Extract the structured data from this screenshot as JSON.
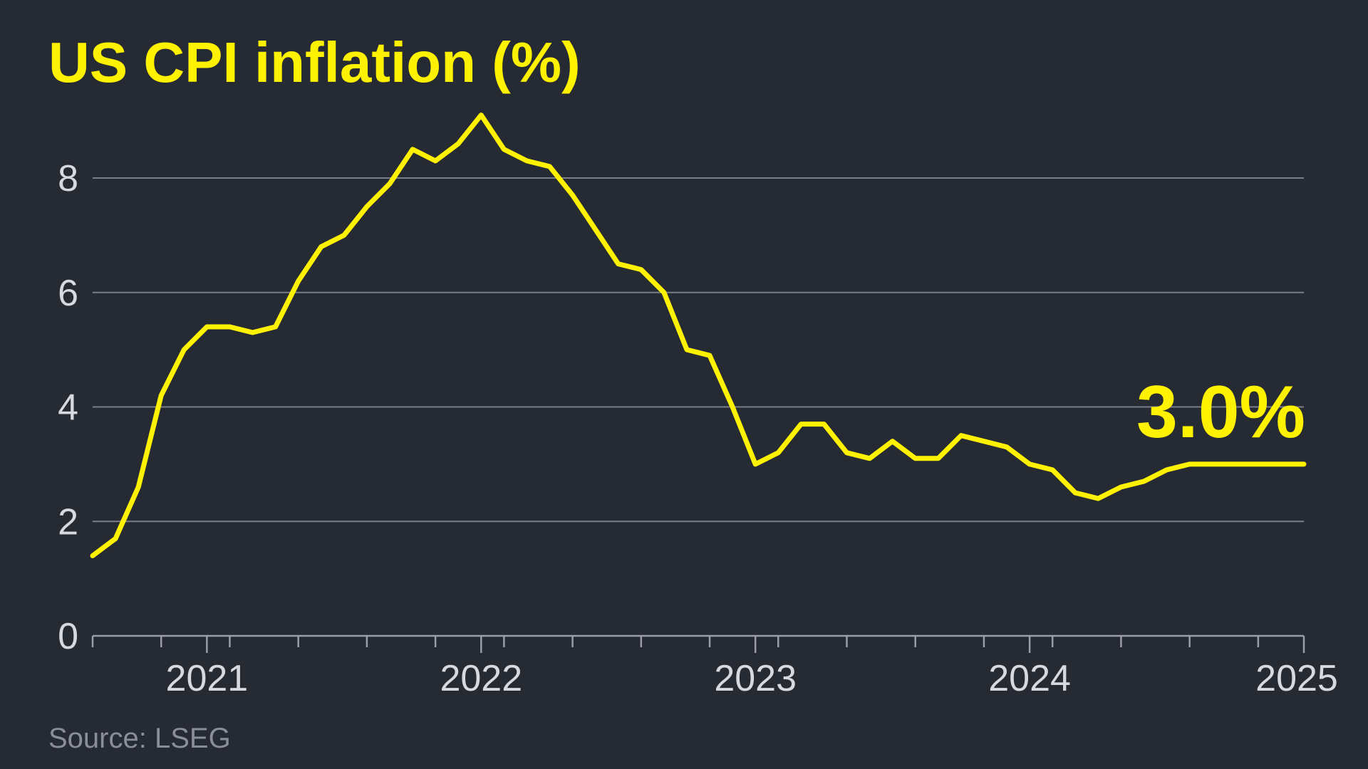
{
  "colors": {
    "background": "#262a33",
    "accent": "#fff200",
    "grid": "#7a7e88",
    "tick_text": "#d7d9de",
    "source_text": "#8a8e98"
  },
  "source": "Source: LSEG",
  "chart_data": {
    "type": "line",
    "title": "US CPI inflation (%)",
    "xlabel": "",
    "ylabel": "",
    "ylim": [
      0,
      9.5
    ],
    "yticks": [
      0,
      2,
      4,
      6,
      8
    ],
    "ytick_labels": [
      "0",
      "2",
      "4",
      "6",
      "8"
    ],
    "grid": true,
    "xlim": [
      "2020-08",
      "2025-01"
    ],
    "xticks": [
      "2021-01",
      "2022-01",
      "2023-01",
      "2024-01",
      "2025-01"
    ],
    "xtick_labels": [
      "2021",
      "2022",
      "2023",
      "2024",
      "2025"
    ],
    "end_label": "3.0%",
    "series": [
      {
        "x": [
          "2020-08",
          "2020-09",
          "2020-10",
          "2020-11",
          "2020-12",
          "2021-01",
          "2021-02",
          "2021-03",
          "2021-04",
          "2021-05",
          "2021-06",
          "2021-07",
          "2021-08",
          "2021-09",
          "2021-10",
          "2021-11",
          "2021-12",
          "2022-01",
          "2022-02",
          "2022-03",
          "2022-04",
          "2022-05",
          "2022-06",
          "2022-07",
          "2022-08",
          "2022-09",
          "2022-10",
          "2022-11",
          "2022-12",
          "2023-01",
          "2023-02",
          "2023-03",
          "2023-04",
          "2023-05",
          "2023-06",
          "2023-07",
          "2023-08",
          "2023-09",
          "2023-10",
          "2023-11",
          "2023-12",
          "2024-01",
          "2024-02",
          "2024-03",
          "2024-04",
          "2024-05",
          "2024-06",
          "2024-07",
          "2024-08",
          "2024-09",
          "2024-10",
          "2024-11",
          "2024-12",
          "2025-01"
        ],
        "values": [
          1.4,
          1.7,
          2.6,
          4.2,
          5.0,
          5.4,
          5.4,
          5.3,
          5.4,
          6.2,
          6.8,
          7.0,
          7.5,
          7.9,
          8.5,
          8.3,
          8.6,
          9.1,
          8.5,
          8.3,
          8.2,
          7.7,
          7.1,
          6.5,
          6.4,
          6.0,
          5.0,
          4.9,
          4.0,
          3.0,
          3.2,
          3.7,
          3.7,
          3.2,
          3.1,
          3.4,
          3.1,
          3.1,
          3.5,
          3.4,
          3.3,
          3.0,
          2.9,
          2.5,
          2.4,
          2.6,
          2.7,
          2.9,
          3.0,
          3.0,
          3.0,
          3.0,
          3.0,
          3.0
        ]
      }
    ]
  }
}
